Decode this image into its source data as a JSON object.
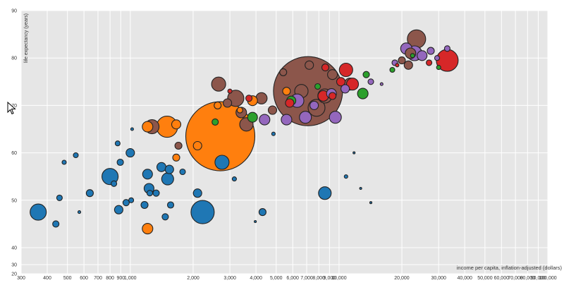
{
  "chart_data": {
    "type": "scatter",
    "xlabel": "income per capita, inflation-adjusted (dollars)",
    "ylabel": "life expectancy (years)",
    "x_scale": "log",
    "xlim": [
      300,
      100000
    ],
    "ylim": [
      20,
      90
    ],
    "x_ticks": [
      300,
      400,
      500,
      600,
      700,
      800,
      900,
      1000,
      2000,
      3000,
      4000,
      5000,
      6000,
      7000,
      8000,
      9000,
      10000,
      20000,
      30000,
      40000,
      50000,
      60000,
      70000,
      80000,
      90000,
      100000
    ],
    "x_tick_labels": [
      "300",
      "400",
      "500",
      "600",
      "700",
      "800",
      "900",
      "1,000",
      "2,000",
      "3,000",
      "4,000",
      "5,000",
      "6,000",
      "7,000",
      "8,000",
      "9,000",
      "10,000",
      "20,000",
      "30,000",
      "40,000",
      "50,000",
      "60,000",
      "70,000",
      "80,000",
      "90,000",
      "100,000"
    ],
    "y_ticks": [
      20,
      30,
      40,
      50,
      60,
      70,
      80,
      90
    ],
    "grid": true,
    "legend": "none",
    "colors": {
      "blue": "#1f77b4",
      "orange": "#ff7f0e",
      "green": "#2ca02c",
      "red": "#d62728",
      "purple": "#9467bd",
      "brown": "#8c564b"
    },
    "points": [
      {
        "x": 362,
        "y": 47.5,
        "r": 11.5,
        "c": "blue"
      },
      {
        "x": 440,
        "y": 45,
        "r": 4.5,
        "c": "blue"
      },
      {
        "x": 458,
        "y": 50.5,
        "r": 4,
        "c": "blue"
      },
      {
        "x": 482,
        "y": 58,
        "r": 3,
        "c": "blue"
      },
      {
        "x": 548,
        "y": 59.5,
        "r": 3.5,
        "c": "blue"
      },
      {
        "x": 570,
        "y": 47.5,
        "r": 2,
        "c": "blue"
      },
      {
        "x": 640,
        "y": 51.5,
        "r": 5,
        "c": "blue"
      },
      {
        "x": 800,
        "y": 55,
        "r": 11.5,
        "c": "blue"
      },
      {
        "x": 835,
        "y": 53.5,
        "r": 4,
        "c": "blue"
      },
      {
        "x": 870,
        "y": 62,
        "r": 3.5,
        "c": "blue"
      },
      {
        "x": 880,
        "y": 48,
        "r": 6,
        "c": "blue"
      },
      {
        "x": 895,
        "y": 58,
        "r": 4.5,
        "c": "blue"
      },
      {
        "x": 955,
        "y": 49.5,
        "r": 4.5,
        "c": "blue"
      },
      {
        "x": 1000,
        "y": 60,
        "r": 6,
        "c": "blue"
      },
      {
        "x": 1010,
        "y": 50,
        "r": 3.5,
        "c": "blue"
      },
      {
        "x": 1020,
        "y": 65,
        "r": 2,
        "c": "blue"
      },
      {
        "x": 1170,
        "y": 49,
        "r": 5,
        "c": "blue"
      },
      {
        "x": 1210,
        "y": 55.5,
        "r": 7,
        "c": "blue"
      },
      {
        "x": 1230,
        "y": 52.5,
        "r": 7,
        "c": "blue"
      },
      {
        "x": 1240,
        "y": 51.5,
        "r": 4,
        "c": "blue"
      },
      {
        "x": 1330,
        "y": 51.5,
        "r": 4.5,
        "c": "blue"
      },
      {
        "x": 1410,
        "y": 57,
        "r": 6.5,
        "c": "blue"
      },
      {
        "x": 1470,
        "y": 46.5,
        "r": 4.5,
        "c": "blue"
      },
      {
        "x": 1510,
        "y": 54.5,
        "r": 8.5,
        "c": "blue"
      },
      {
        "x": 1540,
        "y": 56.5,
        "r": 6,
        "c": "blue"
      },
      {
        "x": 1560,
        "y": 49,
        "r": 4.5,
        "c": "blue"
      },
      {
        "x": 1780,
        "y": 56,
        "r": 4,
        "c": "blue"
      },
      {
        "x": 2100,
        "y": 51.5,
        "r": 6,
        "c": "blue"
      },
      {
        "x": 2220,
        "y": 47.5,
        "r": 16.5,
        "c": "blue"
      },
      {
        "x": 2750,
        "y": 58,
        "r": 10,
        "c": "blue"
      },
      {
        "x": 3150,
        "y": 54.5,
        "r": 3,
        "c": "blue"
      },
      {
        "x": 3970,
        "y": 45.5,
        "r": 1.5,
        "c": "blue"
      },
      {
        "x": 4300,
        "y": 47.5,
        "r": 5,
        "c": "blue"
      },
      {
        "x": 4850,
        "y": 64,
        "r": 2.5,
        "c": "blue"
      },
      {
        "x": 8550,
        "y": 51.5,
        "r": 9,
        "c": "blue"
      },
      {
        "x": 10800,
        "y": 55,
        "r": 2.5,
        "c": "blue"
      },
      {
        "x": 11800,
        "y": 60,
        "r": 1.5,
        "c": "blue"
      },
      {
        "x": 12700,
        "y": 52.5,
        "r": 1.5,
        "c": "blue"
      },
      {
        "x": 14200,
        "y": 49.5,
        "r": 1.5,
        "c": "blue"
      },
      {
        "x": 1210,
        "y": 44,
        "r": 7.5,
        "c": "orange"
      },
      {
        "x": 1210,
        "y": 65.5,
        "r": 7.5,
        "c": "orange"
      },
      {
        "x": 1500,
        "y": 65.5,
        "r": 15,
        "c": "orange"
      },
      {
        "x": 1660,
        "y": 66,
        "r": 6.5,
        "c": "orange"
      },
      {
        "x": 1660,
        "y": 59,
        "r": 5,
        "c": "orange"
      },
      {
        "x": 2100,
        "y": 61.5,
        "r": 6,
        "c": "orange"
      },
      {
        "x": 2700,
        "y": 63.5,
        "r": 49,
        "c": "orange"
      },
      {
        "x": 2620,
        "y": 70,
        "r": 5,
        "c": "orange"
      },
      {
        "x": 3850,
        "y": 71,
        "r": 7,
        "c": "orange"
      },
      {
        "x": 3350,
        "y": 69,
        "r": 4,
        "c": "orange"
      },
      {
        "x": 5600,
        "y": 73,
        "r": 5.5,
        "c": "orange"
      },
      {
        "x": 1270,
        "y": 65.5,
        "r": 10,
        "c": "brown"
      },
      {
        "x": 1700,
        "y": 61.5,
        "r": 5,
        "c": "brown"
      },
      {
        "x": 2650,
        "y": 74.5,
        "r": 10,
        "c": "brown"
      },
      {
        "x": 2920,
        "y": 70.5,
        "r": 6,
        "c": "brown"
      },
      {
        "x": 3200,
        "y": 71.5,
        "r": 11.5,
        "c": "brown"
      },
      {
        "x": 3400,
        "y": 68.5,
        "r": 7.5,
        "c": "brown"
      },
      {
        "x": 3600,
        "y": 66,
        "r": 9.5,
        "c": "brown"
      },
      {
        "x": 4250,
        "y": 71.5,
        "r": 8,
        "c": "brown"
      },
      {
        "x": 4800,
        "y": 69,
        "r": 6,
        "c": "brown"
      },
      {
        "x": 6600,
        "y": 73,
        "r": 9.5,
        "c": "brown"
      },
      {
        "x": 7100,
        "y": 73,
        "r": 49,
        "c": "brown"
      },
      {
        "x": 7800,
        "y": 69.5,
        "r": 12,
        "c": "brown"
      },
      {
        "x": 8550,
        "y": 72,
        "r": 10,
        "c": "brown"
      },
      {
        "x": 9300,
        "y": 76.5,
        "r": 7,
        "c": "brown"
      },
      {
        "x": 11300,
        "y": 74.5,
        "r": 8.5,
        "c": "brown"
      },
      {
        "x": 7200,
        "y": 78.5,
        "r": 6,
        "c": "brown"
      },
      {
        "x": 5400,
        "y": 77,
        "r": 5,
        "c": "brown"
      },
      {
        "x": 23500,
        "y": 84,
        "r": 13,
        "c": "brown"
      },
      {
        "x": 22000,
        "y": 81,
        "r": 7.5,
        "c": "brown"
      },
      {
        "x": 21500,
        "y": 78.5,
        "r": 6,
        "c": "brown"
      },
      {
        "x": 20000,
        "y": 79.5,
        "r": 5,
        "c": "brown"
      },
      {
        "x": 3000,
        "y": 73,
        "r": 3,
        "c": "red"
      },
      {
        "x": 3700,
        "y": 71.5,
        "r": 4.5,
        "c": "red"
      },
      {
        "x": 5800,
        "y": 70.5,
        "r": 6,
        "c": "red"
      },
      {
        "x": 8600,
        "y": 78,
        "r": 5,
        "c": "red"
      },
      {
        "x": 10800,
        "y": 77.5,
        "r": 9.5,
        "c": "red"
      },
      {
        "x": 11600,
        "y": 74.5,
        "r": 8.5,
        "c": "red"
      },
      {
        "x": 8400,
        "y": 72,
        "r": 7.5,
        "c": "red"
      },
      {
        "x": 10200,
        "y": 75,
        "r": 6,
        "c": "red"
      },
      {
        "x": 9300,
        "y": 72,
        "r": 5,
        "c": "red"
      },
      {
        "x": 33000,
        "y": 79.5,
        "r": 15.5,
        "c": "red"
      },
      {
        "x": 27000,
        "y": 79,
        "r": 4,
        "c": "red"
      },
      {
        "x": 19000,
        "y": 78.5,
        "r": 2.5,
        "c": "red"
      },
      {
        "x": 2550,
        "y": 66.5,
        "r": 4.5,
        "c": "green"
      },
      {
        "x": 3850,
        "y": 67.5,
        "r": 7,
        "c": "green"
      },
      {
        "x": 5900,
        "y": 71,
        "r": 6.5,
        "c": "green"
      },
      {
        "x": 7900,
        "y": 74,
        "r": 4,
        "c": "green"
      },
      {
        "x": 13000,
        "y": 72.5,
        "r": 7.5,
        "c": "green"
      },
      {
        "x": 13500,
        "y": 76.5,
        "r": 4.5,
        "c": "green"
      },
      {
        "x": 18000,
        "y": 77.5,
        "r": 3.5,
        "c": "green"
      },
      {
        "x": 22500,
        "y": 80.5,
        "r": 3,
        "c": "green"
      },
      {
        "x": 30000,
        "y": 78,
        "r": 3,
        "c": "green"
      },
      {
        "x": 4400,
        "y": 67,
        "r": 7.5,
        "c": "purple"
      },
      {
        "x": 5600,
        "y": 67,
        "r": 7.5,
        "c": "purple"
      },
      {
        "x": 6300,
        "y": 71,
        "r": 9.5,
        "c": "purple"
      },
      {
        "x": 6900,
        "y": 67.5,
        "r": 8.5,
        "c": "purple"
      },
      {
        "x": 7600,
        "y": 70,
        "r": 6,
        "c": "purple"
      },
      {
        "x": 9200,
        "y": 72.5,
        "r": 7,
        "c": "purple"
      },
      {
        "x": 9600,
        "y": 67.5,
        "r": 8.5,
        "c": "purple"
      },
      {
        "x": 10700,
        "y": 73.5,
        "r": 6,
        "c": "purple"
      },
      {
        "x": 14200,
        "y": 75,
        "r": 4,
        "c": "purple"
      },
      {
        "x": 21000,
        "y": 82,
        "r": 8,
        "c": "purple"
      },
      {
        "x": 23000,
        "y": 81,
        "r": 10.5,
        "c": "purple"
      },
      {
        "x": 25000,
        "y": 80.5,
        "r": 7,
        "c": "purple"
      },
      {
        "x": 27500,
        "y": 81.5,
        "r": 5,
        "c": "purple"
      },
      {
        "x": 29500,
        "y": 80,
        "r": 3.5,
        "c": "purple"
      },
      {
        "x": 16000,
        "y": 74.5,
        "r": 2,
        "c": "purple"
      },
      {
        "x": 18500,
        "y": 79,
        "r": 4,
        "c": "purple"
      },
      {
        "x": 33000,
        "y": 82,
        "r": 4,
        "c": "purple"
      }
    ]
  }
}
